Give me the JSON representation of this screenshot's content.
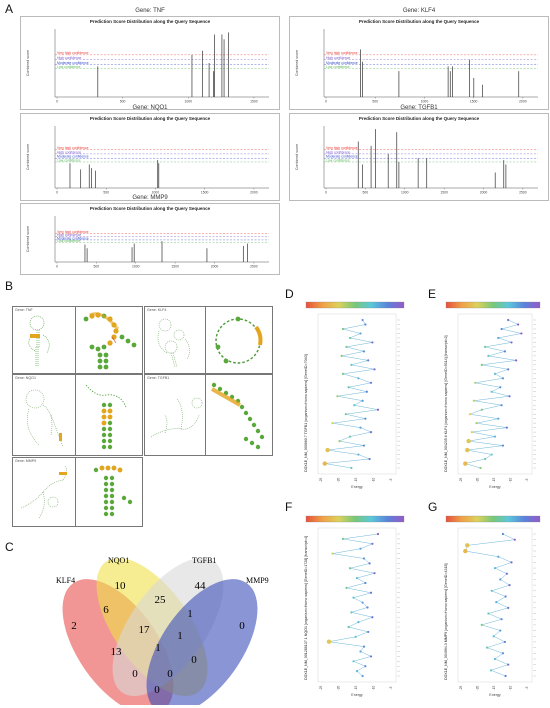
{
  "panel_labels": {
    "A": "A",
    "B": "B",
    "C": "C",
    "D": "D",
    "E": "E",
    "F": "F",
    "G": "G"
  },
  "panelA": {
    "plot_title": "Prediction Score Distribution along the Query Sequence",
    "y_axis_label": "Combined score",
    "legend": [
      "Very high confidence",
      "High confidence",
      "Moderate confidence",
      "Low confidence"
    ],
    "legend_colors": [
      "#e8413c",
      "#7d5ec9",
      "#3a4fc9",
      "#5cb85c"
    ],
    "plots": [
      {
        "gene_label": "Gene:  TNF",
        "ticks": [
          "0",
          "500",
          "1000",
          "1500"
        ],
        "peaks": [
          [
            0.2,
            0.45
          ],
          [
            0.64,
            0.62
          ],
          [
            0.69,
            0.68
          ],
          [
            0.745,
            0.92
          ],
          [
            0.78,
            0.92
          ],
          [
            0.79,
            0.85
          ],
          [
            0.81,
            0.95
          ],
          [
            0.74,
            0.38
          ],
          [
            0.72,
            0.5
          ]
        ]
      },
      {
        "gene_label": "Gene:  KLF4",
        "ticks": [
          "0",
          "500",
          "1000",
          "1500",
          "2000"
        ],
        "peaks": [
          [
            0.17,
            0.7
          ],
          [
            0.18,
            0.52
          ],
          [
            0.35,
            0.38
          ],
          [
            0.58,
            0.45
          ],
          [
            0.59,
            0.38
          ],
          [
            0.6,
            0.45
          ],
          [
            0.68,
            0.55
          ],
          [
            0.7,
            0.28
          ],
          [
            0.74,
            0.18
          ],
          [
            0.91,
            0.38
          ]
        ]
      },
      {
        "gene_label": "Gene:  NQO1",
        "ticks": [
          "0",
          "500",
          "1000",
          "1500",
          "2000"
        ],
        "peaks": [
          [
            0.07,
            0.4
          ],
          [
            0.12,
            0.3
          ],
          [
            0.16,
            0.38
          ],
          [
            0.17,
            0.32
          ],
          [
            0.19,
            0.28
          ],
          [
            0.48,
            0.45
          ],
          [
            0.485,
            0.4
          ]
        ]
      },
      {
        "gene_label": "Gene:  TGFB1",
        "ticks": [
          "0",
          "500",
          "1000",
          "1500",
          "2000",
          "2500"
        ],
        "peaks": [
          [
            0.16,
            0.75
          ],
          [
            0.18,
            0.38
          ],
          [
            0.22,
            0.68
          ],
          [
            0.24,
            0.95
          ],
          [
            0.3,
            0.55
          ],
          [
            0.34,
            0.9
          ],
          [
            0.35,
            0.42
          ],
          [
            0.44,
            0.48
          ],
          [
            0.48,
            0.48
          ],
          [
            0.8,
            0.25
          ],
          [
            0.84,
            0.45
          ],
          [
            0.85,
            0.38
          ]
        ]
      },
      {
        "gene_label": "Gene:  MMP9",
        "ticks": [
          "0",
          "500",
          "1000",
          "1500",
          "2000",
          "2500"
        ],
        "peaks": [
          [
            0.14,
            0.38
          ],
          [
            0.15,
            0.3
          ],
          [
            0.36,
            0.32
          ],
          [
            0.37,
            0.4
          ],
          [
            0.5,
            0.45
          ],
          [
            0.71,
            0.3
          ],
          [
            0.88,
            0.35
          ],
          [
            0.9,
            0.4
          ]
        ]
      }
    ]
  },
  "panelB": {
    "structures": [
      {
        "gene_label": "Gene: TNF"
      },
      {
        "gene_label": "Gene: KLF4"
      },
      {
        "gene_label": "Gene: NQO1"
      },
      {
        "gene_label": "Gene: TGFB1"
      },
      {
        "gene_label": "Gene: MMP9"
      }
    ]
  },
  "venn": {
    "set_labels": [
      "KLF4",
      "NQO1",
      "TGFB1",
      "MMP9"
    ],
    "set_colors": [
      "#e8504e",
      "#f0e04a",
      "#d8d8d8",
      "#3a4fb8"
    ],
    "region_values": [
      "2",
      "10",
      "44",
      "0",
      "6",
      "25",
      "1",
      "17",
      "1",
      "13",
      "1",
      "0",
      "0",
      "0",
      "0"
    ]
  },
  "lollipops": [
    {
      "panel": "D",
      "axis_title": "DOX1E_NM_000660.7 TGFB1 [organism=Homo sapiens] [GeneID=7040]",
      "xlabel": "Energy",
      "xticks": [
        "-25",
        "-20",
        "-15",
        "-10",
        "-5"
      ],
      "points": [
        0.58,
        0.62,
        0.3,
        0.55,
        0.4,
        0.72,
        0.35,
        0.6,
        0.28,
        0.66,
        0.42,
        0.75,
        0.3,
        0.52,
        0.7,
        0.38,
        0.64,
        0.22,
        0.58,
        0.46,
        0.8,
        0.34,
        0.62,
        0.15,
        0.55,
        0.7,
        0.4,
        0.25,
        0.6,
        0.08,
        0.52,
        0.68,
        0.04,
        0.42
      ]
    },
    {
      "panel": "E",
      "axis_title": "DOX1E_NM_004235.6 KLF4 [organism=Homo sapiens] [GeneID=9314] [transcript=2]",
      "xlabel": "Energy",
      "xticks": [
        "-25",
        "-20",
        "-15",
        "-10",
        "-5"
      ],
      "points": [
        0.7,
        0.85,
        0.6,
        0.9,
        0.55,
        0.75,
        0.35,
        0.65,
        0.4,
        0.82,
        0.3,
        0.7,
        0.5,
        0.62,
        0.2,
        0.58,
        0.45,
        0.72,
        0.18,
        0.6,
        0.3,
        0.12,
        0.55,
        0.22,
        0.68,
        0.15,
        0.5,
        0.1,
        0.62,
        0.08,
        0.45,
        0.35,
        0.05,
        0.28
      ]
    },
    {
      "panel": "F",
      "axis_title": "DOX1E_NM_001286137.1 NQO1 [organism=Homo sapiens] [GeneID=1728] [transcript=4]",
      "xlabel": "Energy",
      "xticks": [
        "-25",
        "-20",
        "-15",
        "-10",
        "-5"
      ],
      "points": [
        0.8,
        0.3,
        0.72,
        0.55,
        0.15,
        0.6,
        0.68,
        0.4,
        0.75,
        0.5,
        0.62,
        0.35,
        0.7,
        0.45,
        0.58,
        0.65,
        0.42,
        0.72,
        0.52,
        0.38,
        0.66,
        0.48,
        0.1,
        0.6,
        0.55,
        0.7,
        0.45,
        0.62,
        0.5,
        0.58
      ]
    },
    {
      "panel": "G",
      "axis_title": "DOX1E_NM_004994.3 MMP9 [organism=Homo sapiens] [GeneID=4318]",
      "xlabel": "Energy",
      "xticks": [
        "-25",
        "-20",
        "-15",
        "-10",
        "-5"
      ],
      "points": [
        0.62,
        0.8,
        0.08,
        0.05,
        0.55,
        0.75,
        0.5,
        0.68,
        0.58,
        0.72,
        0.45,
        0.66,
        0.52,
        0.7,
        0.4,
        0.6,
        0.3,
        0.58,
        0.48,
        0.65,
        0.38,
        0.62,
        0.5,
        0.7,
        0.44,
        0.66
      ]
    }
  ]
}
